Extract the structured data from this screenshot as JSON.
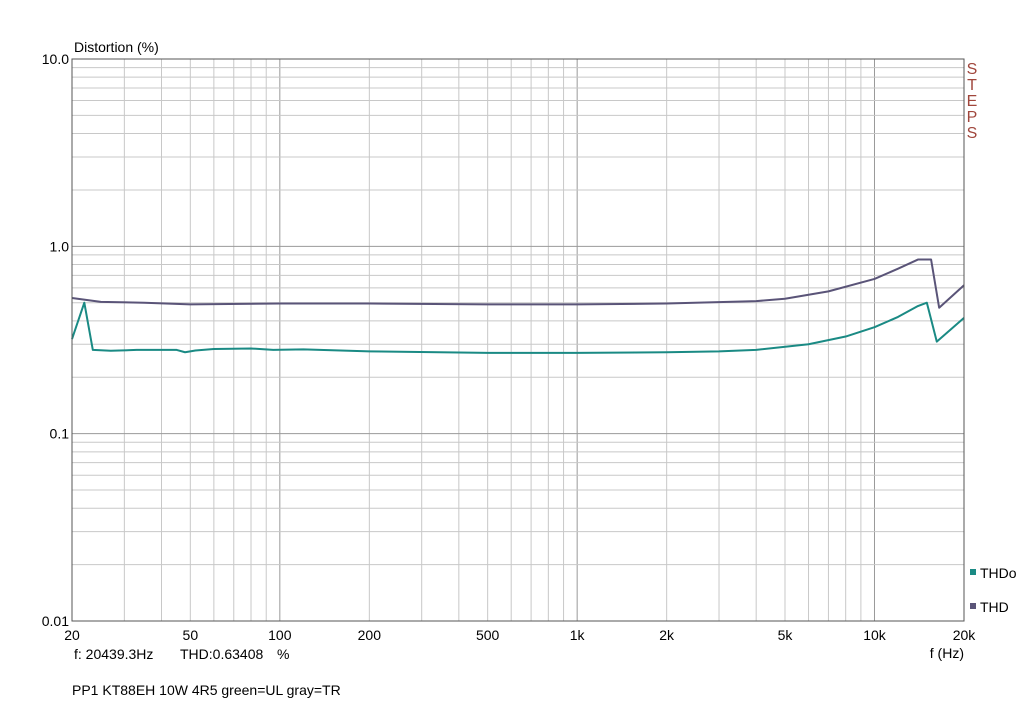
{
  "colors": {
    "thdo": "#1a8a84",
    "thd": "#5a5478",
    "grid_major": "#9a9a9a",
    "grid_minor": "#c8c8c8",
    "brand": "#a0463c"
  },
  "brand_letters": [
    "S",
    "T",
    "E",
    "P",
    "S"
  ],
  "readout": {
    "freq": "f: 20439.3Hz",
    "thd": "THD:0.63408",
    "unit": "%"
  },
  "caption": "PP1 KT88EH 10W 4R5 green=UL gray=TR",
  "chart_data": {
    "type": "line",
    "title": "",
    "xlabel": "f (Hz)",
    "ylabel": "Distortion (%)",
    "xscale": "log",
    "yscale": "log",
    "xlim": [
      20,
      20000
    ],
    "ylim": [
      0.01,
      10.0
    ],
    "grid": true,
    "legend": "bottom-right",
    "x_ticks": [
      {
        "value": 20,
        "label": "20"
      },
      {
        "value": 50,
        "label": "50"
      },
      {
        "value": 100,
        "label": "100"
      },
      {
        "value": 200,
        "label": "200"
      },
      {
        "value": 500,
        "label": "500"
      },
      {
        "value": 1000,
        "label": "1k"
      },
      {
        "value": 2000,
        "label": "2k"
      },
      {
        "value": 5000,
        "label": "5k"
      },
      {
        "value": 10000,
        "label": "10k"
      },
      {
        "value": 20000,
        "label": "20k"
      }
    ],
    "y_ticks": [
      {
        "value": 10.0,
        "label": "10.0"
      },
      {
        "value": 1.0,
        "label": "1.0"
      },
      {
        "value": 0.1,
        "label": "0.1"
      },
      {
        "value": 0.01,
        "label": "0.01"
      }
    ],
    "series": [
      {
        "name": "THDo",
        "color": "#1a8a84",
        "x": [
          20,
          22,
          23.5,
          27,
          33,
          45,
          48,
          52,
          60,
          80,
          95,
          120,
          200,
          500,
          700,
          1000,
          2000,
          3000,
          4000,
          6000,
          8000,
          10000,
          12000,
          14000,
          15000,
          16200,
          20000
        ],
        "y": [
          0.32,
          0.5,
          0.28,
          0.277,
          0.28,
          0.28,
          0.272,
          0.278,
          0.283,
          0.285,
          0.28,
          0.282,
          0.275,
          0.27,
          0.27,
          0.27,
          0.272,
          0.275,
          0.28,
          0.3,
          0.33,
          0.37,
          0.42,
          0.48,
          0.5,
          0.31,
          0.415
        ]
      },
      {
        "name": "THD",
        "color": "#5a5478",
        "x": [
          20,
          25,
          35,
          50,
          100,
          200,
          500,
          1000,
          2000,
          4000,
          5000,
          7000,
          10000,
          12000,
          14000,
          15500,
          16500,
          20000
        ],
        "y": [
          0.53,
          0.505,
          0.5,
          0.49,
          0.495,
          0.495,
          0.49,
          0.49,
          0.495,
          0.51,
          0.525,
          0.575,
          0.67,
          0.76,
          0.85,
          0.85,
          0.47,
          0.62
        ]
      }
    ]
  }
}
